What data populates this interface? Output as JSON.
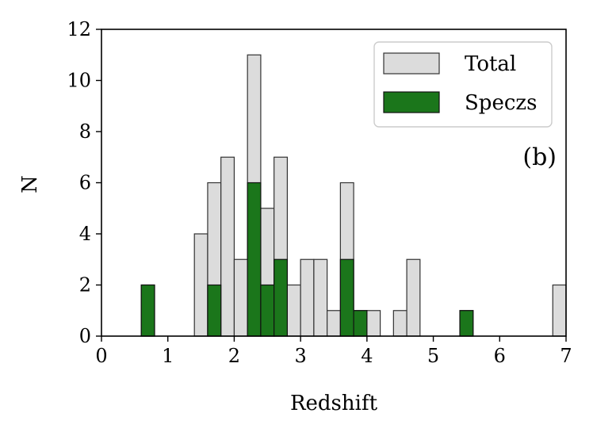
{
  "chart_data": {
    "type": "bar",
    "subtype": "overlaid-histogram",
    "xlabel": "Redshift",
    "ylabel": "N",
    "xlim": [
      0,
      7
    ],
    "ylim": [
      0,
      12
    ],
    "xticks": [
      0,
      1,
      2,
      3,
      4,
      5,
      6,
      7
    ],
    "yticks": [
      0,
      2,
      4,
      6,
      8,
      10,
      12
    ],
    "bin_width": 0.2,
    "grid": false,
    "legend_position": "top-right",
    "annotation": "(b)",
    "series": [
      {
        "name": "Total",
        "color": "#dcdcdc",
        "edge_color": "#333333",
        "bins": [
          {
            "x0": 0.6,
            "value": 2
          },
          {
            "x0": 1.4,
            "value": 4
          },
          {
            "x0": 1.6,
            "value": 6
          },
          {
            "x0": 1.8,
            "value": 7
          },
          {
            "x0": 2.0,
            "value": 3
          },
          {
            "x0": 2.2,
            "value": 11
          },
          {
            "x0": 2.4,
            "value": 5
          },
          {
            "x0": 2.6,
            "value": 7
          },
          {
            "x0": 2.8,
            "value": 2
          },
          {
            "x0": 3.0,
            "value": 3
          },
          {
            "x0": 3.2,
            "value": 3
          },
          {
            "x0": 3.4,
            "value": 1
          },
          {
            "x0": 3.6,
            "value": 6
          },
          {
            "x0": 3.8,
            "value": 1
          },
          {
            "x0": 4.0,
            "value": 1
          },
          {
            "x0": 4.4,
            "value": 1
          },
          {
            "x0": 4.6,
            "value": 3
          },
          {
            "x0": 5.4,
            "value": 1
          },
          {
            "x0": 6.8,
            "value": 2
          }
        ]
      },
      {
        "name": "Speczs",
        "color": "#1b761b",
        "edge_color": "#111111",
        "bins": [
          {
            "x0": 0.6,
            "value": 2
          },
          {
            "x0": 1.6,
            "value": 2
          },
          {
            "x0": 2.2,
            "value": 6
          },
          {
            "x0": 2.4,
            "value": 2
          },
          {
            "x0": 2.6,
            "value": 3
          },
          {
            "x0": 3.6,
            "value": 3
          },
          {
            "x0": 3.8,
            "value": 1
          },
          {
            "x0": 5.4,
            "value": 1
          }
        ]
      }
    ]
  }
}
